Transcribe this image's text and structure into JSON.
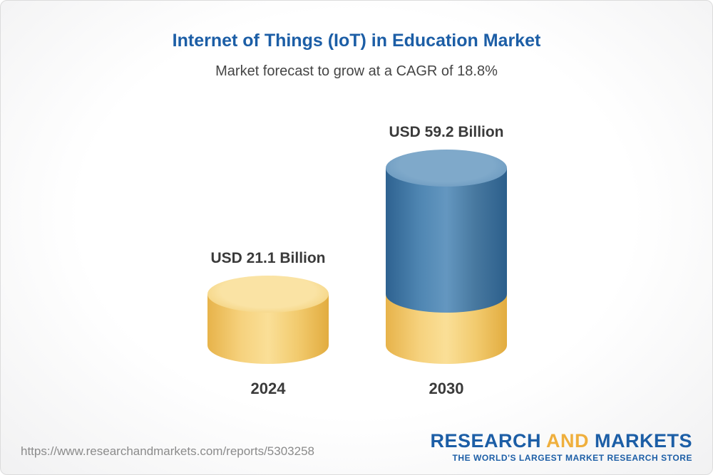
{
  "chart_data": {
    "type": "bar",
    "title": "Internet of Things (IoT) in Education Market",
    "subtitle": "Market forecast to grow at a CAGR of 18.8%",
    "cagr": "18.8%",
    "unit": "USD Billion",
    "categories": [
      "2024",
      "2030"
    ],
    "values": [
      21.1,
      59.2
    ],
    "ylim": [
      0,
      60
    ],
    "grid": false,
    "legend": false,
    "bars": [
      {
        "year": "2024",
        "value": 21.1,
        "value_label": "USD 21.1 Billion",
        "segments": [
          {
            "color_key": "gold",
            "value": 21.1
          }
        ]
      },
      {
        "year": "2030",
        "value": 59.2,
        "value_label": "USD 59.2 Billion",
        "segments": [
          {
            "color_key": "gold",
            "value": 21.1
          },
          {
            "color_key": "blue",
            "value": 38.1
          }
        ]
      }
    ],
    "colors": {
      "gold": "#F4CF70",
      "blue": "#4679A6",
      "title_blue": "#1C5EA6",
      "label_dark": "#3A3A3A"
    }
  },
  "footer": {
    "url": "https://www.researchandmarkets.com/reports/5303258",
    "logo": {
      "part1": "RESEARCH",
      "part2": "AND",
      "part3": "MARKETS",
      "tagline": "THE WORLD'S LARGEST MARKET RESEARCH STORE"
    }
  }
}
